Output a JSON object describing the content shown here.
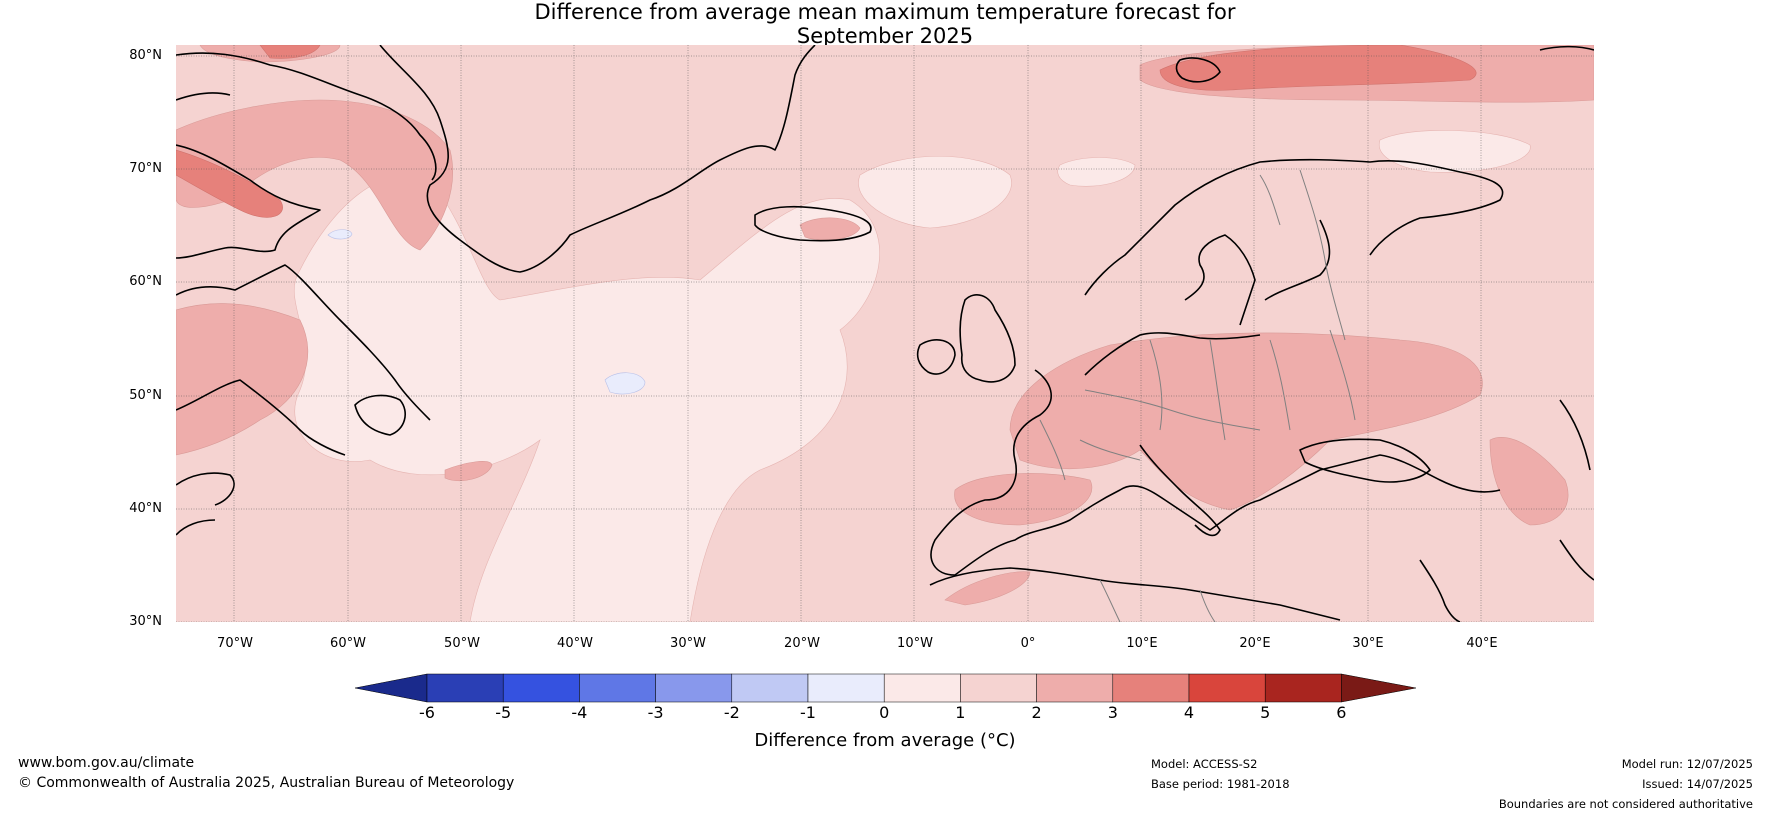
{
  "title": {
    "line1": "Difference from average mean maximum temperature forecast for",
    "line2": "September 2025"
  },
  "axes": {
    "latitude_labels": [
      "80°N",
      "70°N",
      "60°N",
      "50°N",
      "40°N",
      "30°N"
    ],
    "longitude_labels": [
      "70°W",
      "60°W",
      "50°W",
      "40°W",
      "30°W",
      "20°W",
      "10°W",
      "0°",
      "10°E",
      "20°E",
      "30°E",
      "40°E"
    ]
  },
  "legend": {
    "label": "Difference from average (°C)",
    "ticks": [
      "-6",
      "-5",
      "-4",
      "-3",
      "-2",
      "-1",
      "0",
      "1",
      "2",
      "3",
      "4",
      "5",
      "6"
    ],
    "colors": [
      "#1a2a8c",
      "#2a3fb5",
      "#3552e0",
      "#5f77e6",
      "#8898ec",
      "#c0c9f4",
      "#e9ecfc",
      "#fbe9e8",
      "#f5d3d1",
      "#eeadab",
      "#e6817b",
      "#d9453c",
      "#a9251f",
      "#7a1a16"
    ]
  },
  "footer": {
    "website": "www.bom.gov.au/climate",
    "copyright": "© Commonwealth of Australia 2025, Australian Bureau of Meteorology",
    "model": "Model: ACCESS-S2",
    "base_period": "Base period: 1981-2018",
    "model_run": "Model run: 12/07/2025",
    "issued": "Issued: 14/07/2025",
    "disclaimer": "Boundaries are not considered authoritative"
  },
  "map_colors": {
    "ocean_base": "#f5d3d1",
    "coastline": "#000000",
    "border": "#808080",
    "grid": "#555555"
  }
}
